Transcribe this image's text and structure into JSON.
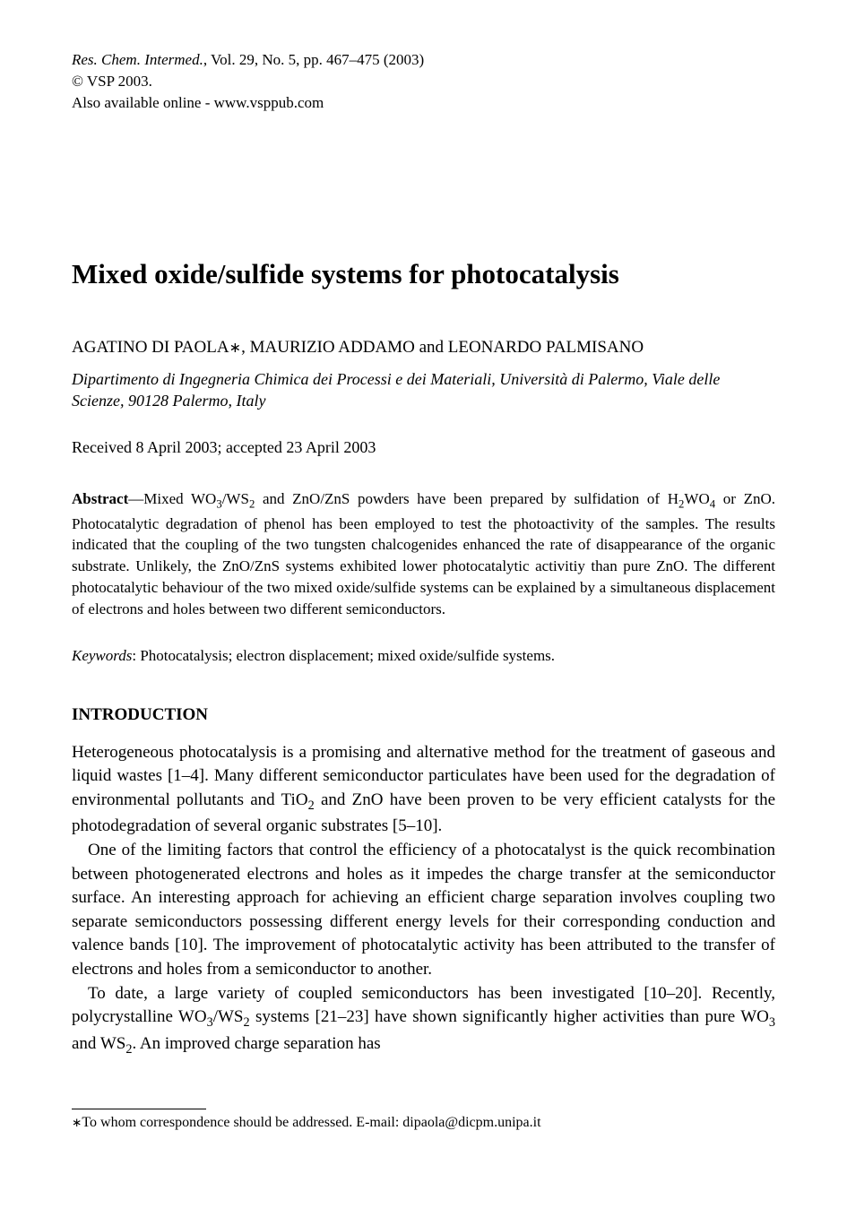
{
  "header": {
    "journal_name": "Res. Chem. Intermed.",
    "citation": ", Vol. 29, No. 5, pp. 467–475 (2003)",
    "copyright": "© VSP 2003.",
    "online": "Also available online - www.vsppub.com"
  },
  "title": "Mixed oxide/sulfide systems for photocatalysis",
  "authors": {
    "a1": "AGATINO DI PAOLA",
    "mark": "∗",
    "sep1": ", ",
    "a2": "MAURIZIO ADDAMO",
    "sep2": " and ",
    "a3": "LEONARDO PALMISANO"
  },
  "affiliation": "Dipartimento di Ingegneria Chimica dei Processi e dei Materiali, Università di Palermo, Viale delle Scienze, 90128 Palermo, Italy",
  "dates": "Received 8 April 2003; accepted 23 April 2003",
  "abstract": {
    "label": "Abstract",
    "dash": "—",
    "t1": "Mixed WO",
    "s1": "3",
    "t2": "/WS",
    "s2": "2",
    "t3": " and ZnO/ZnS powders have been prepared by sulfidation of H",
    "s3": "2",
    "t4": "WO",
    "s4": "4",
    "t5": " or ZnO. Photocatalytic degradation of phenol has been employed to test the photoactivity of the samples. The results indicated that the coupling of the two tungsten chalcogenides enhanced the rate of disappearance of the organic substrate. Unlikely, the ZnO/ZnS systems exhibited lower photocatalytic activitiy than pure ZnO. The different photocatalytic behaviour of the two mixed oxide/sulfide systems can be explained by a simultaneous displacement of electrons and holes between two different semiconductors."
  },
  "keywords": {
    "label": "Keywords",
    "text": ": Photocatalysis; electron displacement; mixed oxide/sulfide systems."
  },
  "section_heading": "INTRODUCTION",
  "body": {
    "p1a": "Heterogeneous photocatalysis is a promising and alternative method for the treatment of gaseous and liquid wastes [1–4]. Many different semiconductor particulates have been used for the degradation of environmental pollutants and TiO",
    "p1s1": "2",
    "p1b": " and ZnO have been proven to be very efficient catalysts for the photodegradation of several organic substrates [5–10].",
    "p2": "One of the limiting factors that control the efficiency of a photocatalyst is the quick recombination between photogenerated electrons and holes as it impedes the charge transfer at the semiconductor surface. An interesting approach for achieving an efficient charge separation involves coupling two separate semiconductors possessing different energy levels for their corresponding conduction and valence bands [10]. The improvement of photocatalytic activity has been attributed to the transfer of electrons and holes from a semiconductor to another.",
    "p3a": "To date, a large variety of coupled semiconductors has been investigated [10–20]. Recently, polycrystalline WO",
    "p3s1": "3",
    "p3b": "/WS",
    "p3s2": "2",
    "p3c": " systems [21–23] have shown significantly higher activities than pure WO",
    "p3s3": "3",
    "p3d": " and WS",
    "p3s4": "2",
    "p3e": ". An improved charge separation has"
  },
  "footnote": {
    "mark": "∗",
    "text": "To whom correspondence should be addressed. E-mail: dipaola@dicpm.unipa.it"
  },
  "style": {
    "text_color": "#000000",
    "background_color": "#ffffff",
    "title_fontsize": 31,
    "body_fontsize": 19,
    "abstract_fontsize": 17,
    "header_fontsize": 17,
    "footnote_fontsize": 16,
    "font_family": "Times New Roman"
  }
}
